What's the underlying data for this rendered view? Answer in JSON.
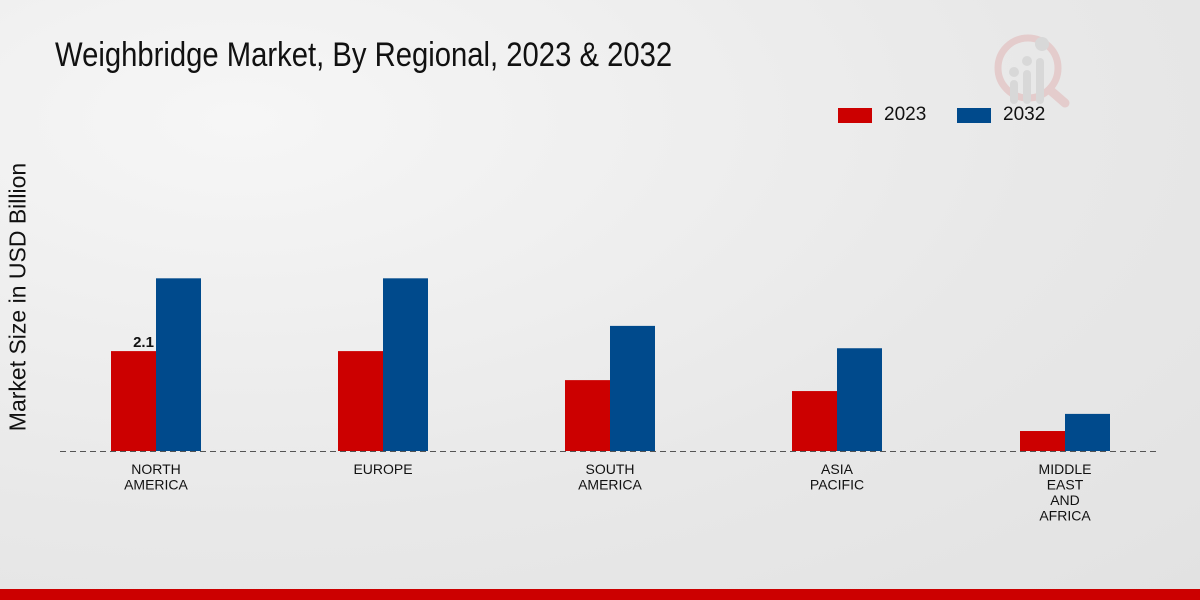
{
  "chart_data": {
    "type": "bar",
    "title": "Weighbridge Market, By Regional, 2023 & 2032",
    "xlabel": "",
    "ylabel": "Market Size in USD Billion",
    "ylim": [
      0,
      7
    ],
    "grid": false,
    "legend_position": "top-right",
    "categories": [
      "NORTH\nAMERICA",
      "EUROPE",
      "SOUTH\nAMERICA",
      "ASIA\nPACIFIC",
      "MIDDLE\nEAST\nAND\nAFRICA"
    ],
    "series": [
      {
        "name": "2023",
        "color": "#cc0000",
        "values": [
          2.1,
          2.1,
          1.49,
          1.26,
          0.42
        ]
      },
      {
        "name": "2032",
        "color": "#004a8c",
        "values": [
          3.63,
          3.63,
          2.63,
          2.16,
          0.78
        ]
      }
    ],
    "annotations": [
      {
        "category_index": 0,
        "series_index": 0,
        "text": "2.1"
      }
    ]
  }
}
